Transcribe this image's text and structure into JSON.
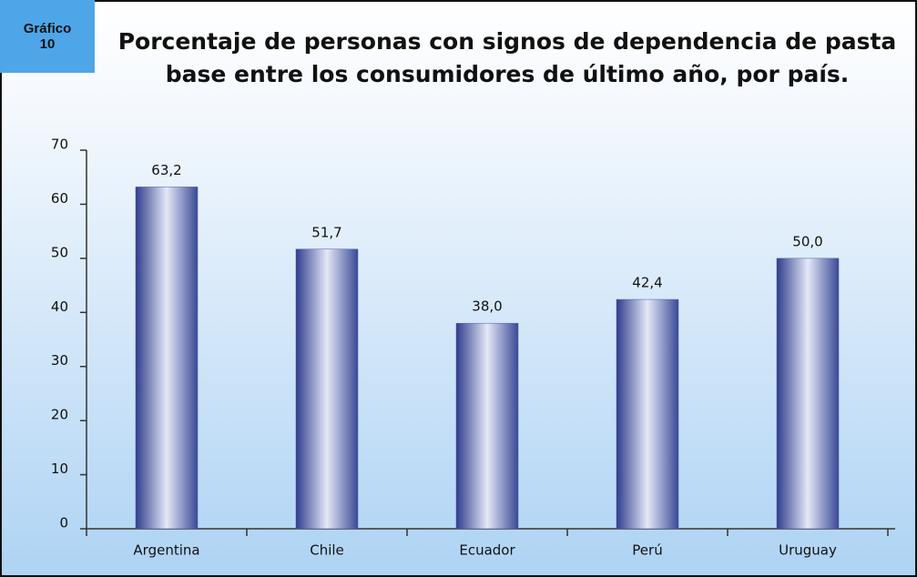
{
  "badge": {
    "label": "Gráfico",
    "number": "10"
  },
  "chart_data": {
    "type": "bar",
    "title": "Porcentaje de personas con signos de dependencia de pasta base entre los consumidores de último año, por país.",
    "categories": [
      "Argentina",
      "Chile",
      "Ecuador",
      "Perú",
      "Uruguay"
    ],
    "values": [
      63.2,
      51.7,
      38.0,
      42.4,
      50.0
    ],
    "value_labels": [
      "63,2",
      "51,7",
      "38,0",
      "42,4",
      "50,0"
    ],
    "color": "#4a5aa8",
    "ylim": [
      0,
      70
    ],
    "yticks": [
      0,
      10,
      20,
      30,
      40,
      50,
      60,
      70
    ],
    "grid": false
  }
}
